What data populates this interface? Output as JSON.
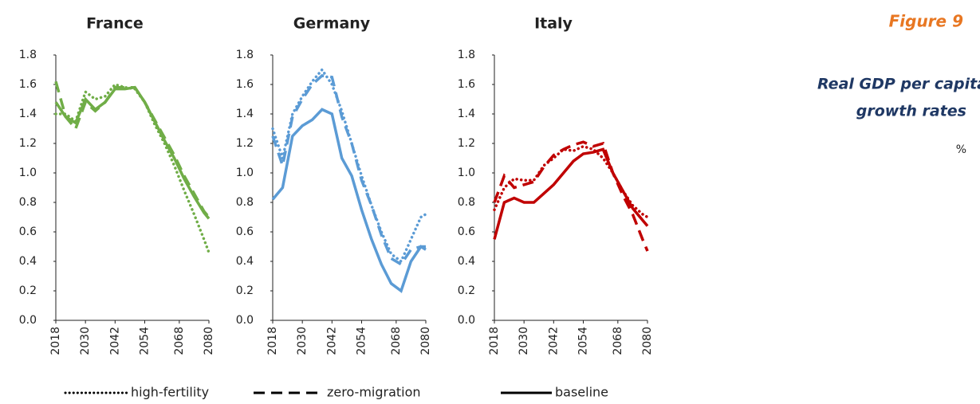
{
  "figure_label": "Figure 9",
  "side_title": [
    "Real GDP per capita",
    "growth rates"
  ],
  "unit": "%",
  "chart_data": [
    {
      "type": "line",
      "title": "France",
      "color": "#70ad47",
      "x": [
        2018,
        2022,
        2026,
        2030,
        2034,
        2038,
        2042,
        2046,
        2050,
        2054,
        2058,
        2062,
        2066,
        2070,
        2074,
        2078,
        2080
      ],
      "xlim": [
        2018,
        2080
      ],
      "xticks": [
        2018,
        2030,
        2042,
        2054,
        2068,
        2080
      ],
      "ylim": [
        0,
        1.8
      ],
      "yticks": [
        {
          "value": 0,
          "label": "0.0"
        },
        0.2,
        0.4,
        0.6,
        0.8,
        {
          "value": 1,
          "label": "1.0"
        },
        1.2,
        1.4,
        1.6,
        1.8
      ],
      "series": [
        {
          "name": "high-fertility",
          "dash": "dotted",
          "values": [
            1.4,
            1.4,
            1.35,
            1.55,
            1.5,
            1.52,
            1.6,
            1.58,
            1.57,
            1.48,
            1.33,
            1.2,
            1.05,
            0.88,
            0.72,
            0.55,
            0.46
          ]
        },
        {
          "name": "zero-migration",
          "dash": "dashed",
          "values": [
            1.62,
            1.38,
            1.3,
            1.48,
            1.42,
            1.48,
            1.58,
            1.58,
            1.58,
            1.48,
            1.36,
            1.24,
            1.12,
            0.98,
            0.86,
            0.74,
            0.7
          ]
        },
        {
          "name": "baseline",
          "dash": "solid",
          "values": [
            1.48,
            1.38,
            1.34,
            1.5,
            1.43,
            1.48,
            1.57,
            1.57,
            1.58,
            1.48,
            1.35,
            1.22,
            1.1,
            0.96,
            0.84,
            0.73,
            0.69
          ]
        }
      ]
    },
    {
      "type": "line",
      "title": "Germany",
      "color": "#5b9bd5",
      "x": [
        2018,
        2022,
        2026,
        2030,
        2034,
        2038,
        2042,
        2046,
        2050,
        2054,
        2058,
        2062,
        2066,
        2070,
        2074,
        2078,
        2080
      ],
      "xlim": [
        2018,
        2080
      ],
      "xticks": [
        2018,
        2030,
        2042,
        2054,
        2068,
        2080
      ],
      "ylim": [
        0,
        1.8
      ],
      "yticks": [
        {
          "value": 0,
          "label": "0.0"
        },
        0.2,
        0.4,
        0.6,
        0.8,
        {
          "value": 1,
          "label": "1.0"
        },
        1.2,
        1.4,
        1.6,
        1.8
      ],
      "series": [
        {
          "name": "high-fertility",
          "dash": "dotted",
          "values": [
            1.3,
            1.1,
            1.4,
            1.52,
            1.62,
            1.7,
            1.6,
            1.42,
            1.2,
            0.98,
            0.78,
            0.6,
            0.45,
            0.4,
            0.55,
            0.7,
            0.72
          ]
        },
        {
          "name": "zero-migration",
          "dash": "dashed",
          "values": [
            1.25,
            1.05,
            1.38,
            1.5,
            1.6,
            1.66,
            1.65,
            1.38,
            1.2,
            0.95,
            0.78,
            0.58,
            0.42,
            0.38,
            0.48,
            0.5,
            0.5
          ]
        },
        {
          "name": "baseline",
          "dash": "solid",
          "values": [
            0.82,
            0.9,
            1.25,
            1.32,
            1.36,
            1.43,
            1.4,
            1.1,
            0.98,
            0.75,
            0.55,
            0.38,
            0.25,
            0.2,
            0.4,
            0.5,
            0.48
          ]
        }
      ]
    },
    {
      "type": "line",
      "title": "Italy",
      "color": "#c00000",
      "x": [
        2018,
        2022,
        2026,
        2030,
        2034,
        2038,
        2042,
        2046,
        2050,
        2054,
        2058,
        2062,
        2066,
        2070,
        2074,
        2078,
        2080
      ],
      "xlim": [
        2018,
        2080
      ],
      "xticks": [
        2018,
        2030,
        2042,
        2054,
        2068,
        2080
      ],
      "ylim": [
        0,
        1.8
      ],
      "yticks": [
        {
          "value": 0,
          "label": "0.0"
        },
        0.2,
        0.4,
        0.6,
        0.8,
        {
          "value": 1,
          "label": "1.0"
        },
        1.2,
        1.4,
        1.6,
        1.8
      ],
      "series": [
        {
          "name": "high-fertility",
          "dash": "dotted",
          "values": [
            0.75,
            0.9,
            0.96,
            0.95,
            0.95,
            1.05,
            1.1,
            1.16,
            1.15,
            1.18,
            1.16,
            1.1,
            1.0,
            0.88,
            0.78,
            0.72,
            0.7
          ]
        },
        {
          "name": "zero-migration",
          "dash": "dashed",
          "values": [
            0.8,
            0.98,
            0.9,
            0.92,
            0.94,
            1.04,
            1.12,
            1.16,
            1.19,
            1.21,
            1.18,
            1.2,
            1.0,
            0.85,
            0.72,
            0.55,
            0.47
          ]
        },
        {
          "name": "baseline",
          "dash": "solid",
          "values": [
            0.55,
            0.8,
            0.83,
            0.8,
            0.8,
            0.86,
            0.92,
            1.0,
            1.08,
            1.13,
            1.14,
            1.16,
            1.0,
            0.88,
            0.76,
            0.68,
            0.64
          ]
        }
      ]
    }
  ]
}
